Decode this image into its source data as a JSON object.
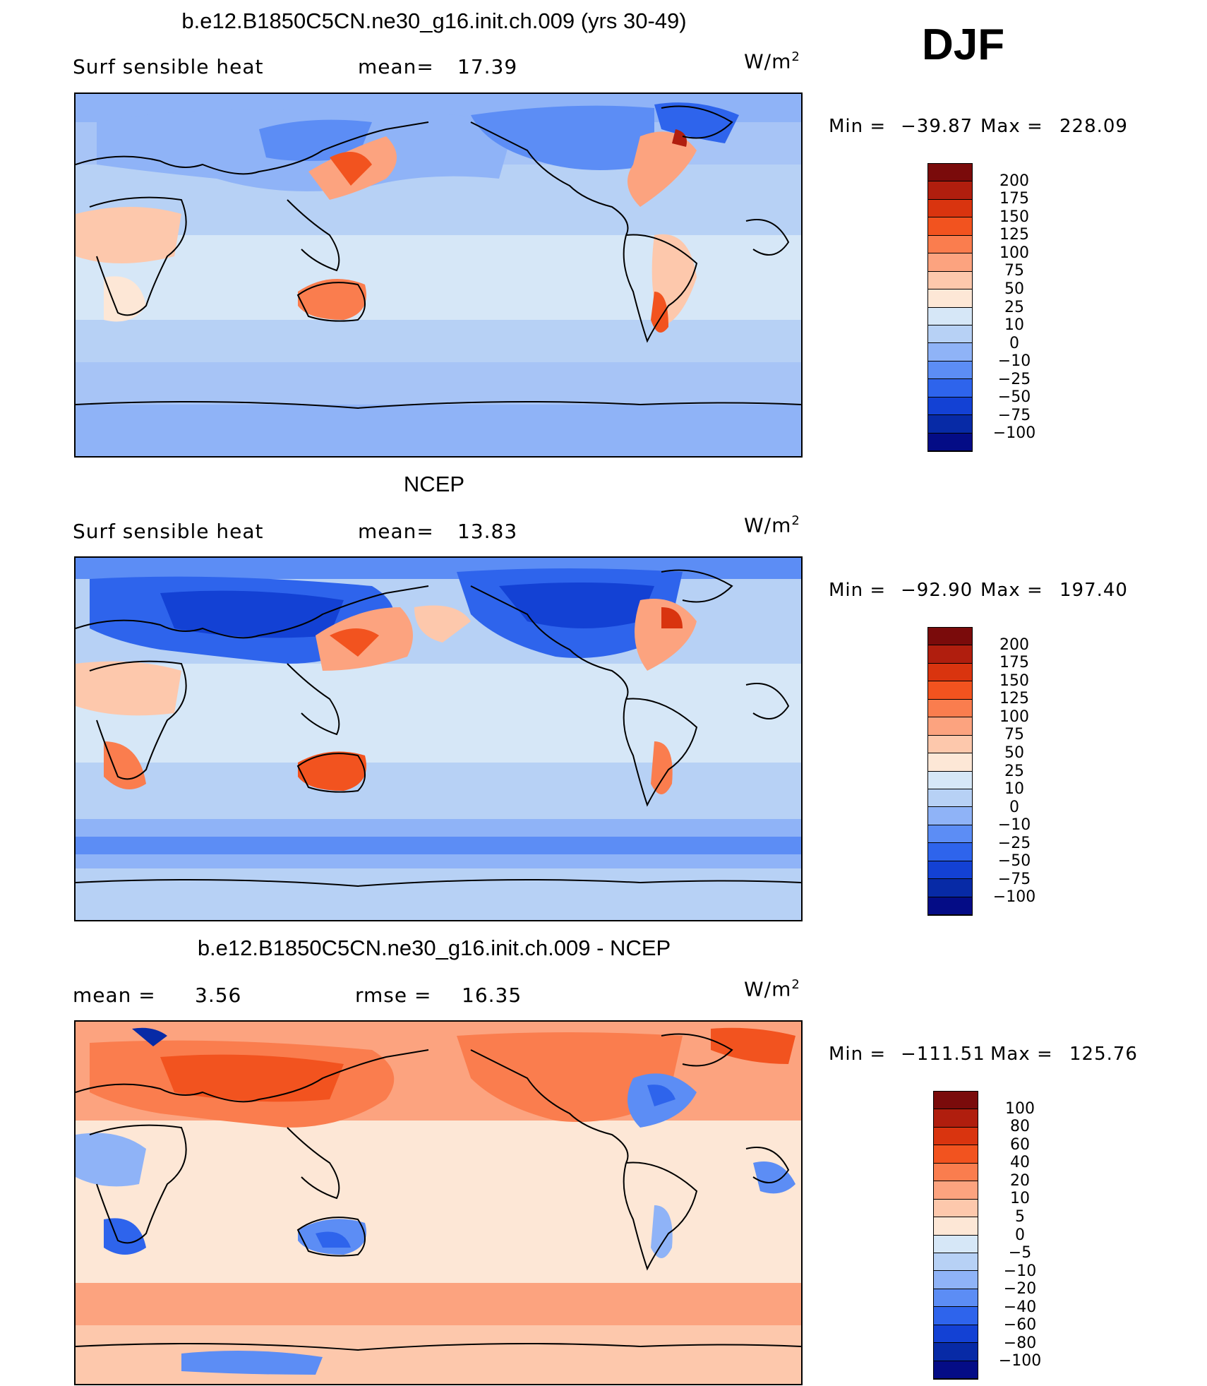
{
  "season": "DJF",
  "panels": [
    {
      "title": "b.e12.B1850C5CN.ne30_g16.init.ch.009 (yrs 30-49)",
      "left_label": "Surf  sensible  heat",
      "stat_label": "mean=",
      "stat_value": "17.39",
      "unit": "W/m",
      "unit_exp": "2",
      "min_label": "Min  =",
      "min_value": "−39.87",
      "max_label": "Max  =",
      "max_value": "228.09",
      "colorbar_labels": [
        "200",
        "175",
        "150",
        "125",
        "100",
        "75",
        "50",
        "25",
        "10",
        "0",
        "−10",
        "−25",
        "−50",
        "−75",
        "−100"
      ],
      "colors": [
        "#7a0b0b",
        "#b01e0e",
        "#d9340f",
        "#f2531f",
        "#fa7d4e",
        "#fca37f",
        "#fdc8ac",
        "#fde7d6",
        "#d6e7f7",
        "#b7d1f5",
        "#8fb3f7",
        "#5c8df5",
        "#2e64ec",
        "#1341d4",
        "#072aa6",
        "#040c86"
      ]
    },
    {
      "title": "NCEP",
      "left_label": "Surf  sensible  heat",
      "stat_label": "mean=",
      "stat_value": "13.83",
      "unit": "W/m",
      "unit_exp": "2",
      "min_label": "Min  =",
      "min_value": "−92.90",
      "max_label": "Max  =",
      "max_value": "197.40",
      "colorbar_labels": [
        "200",
        "175",
        "150",
        "125",
        "100",
        "75",
        "50",
        "25",
        "10",
        "0",
        "−10",
        "−25",
        "−50",
        "−75",
        "−100"
      ],
      "colors": [
        "#7a0b0b",
        "#b01e0e",
        "#d9340f",
        "#f2531f",
        "#fa7d4e",
        "#fca37f",
        "#fdc8ac",
        "#fde7d6",
        "#d6e7f7",
        "#b7d1f5",
        "#8fb3f7",
        "#5c8df5",
        "#2e64ec",
        "#1341d4",
        "#072aa6",
        "#040c86"
      ]
    },
    {
      "title": "b.e12.B1850C5CN.ne30_g16.init.ch.009 - NCEP",
      "left_label": "mean  =",
      "left_value": "3.56",
      "stat_label": "rmse  =",
      "stat_value": "16.35",
      "unit": "W/m",
      "unit_exp": "2",
      "min_label": "Min  =",
      "min_value": "−111.51",
      "max_label": "Max  =",
      "max_value": "125.76",
      "colorbar_labels": [
        "100",
        "80",
        "60",
        "40",
        "20",
        "10",
        "5",
        "0",
        "−5",
        "−10",
        "−20",
        "−40",
        "−60",
        "−80",
        "−100"
      ],
      "colors": [
        "#7a0b0b",
        "#b01e0e",
        "#d9340f",
        "#f2531f",
        "#fa7d4e",
        "#fca37f",
        "#fdc8ac",
        "#fde7d6",
        "#d6e7f7",
        "#b7d1f5",
        "#8fb3f7",
        "#5c8df5",
        "#2e64ec",
        "#1341d4",
        "#072aa6",
        "#040c86"
      ]
    }
  ]
}
